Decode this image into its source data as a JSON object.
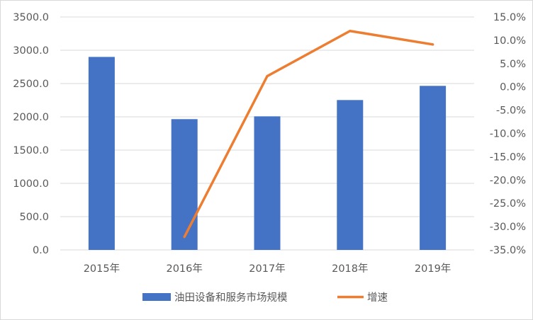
{
  "chart_data": {
    "type": "bar+line",
    "categories": [
      "2015年",
      "2016年",
      "2017年",
      "2018年",
      "2019年"
    ],
    "series": [
      {
        "name": "油田设备和服务市场规模",
        "type": "bar",
        "axis": "left",
        "color": "#4472C4",
        "values": [
          2900,
          1965,
          2007,
          2252,
          2465
        ]
      },
      {
        "name": "增速",
        "type": "line",
        "axis": "right",
        "color": "#ED7D31",
        "values": [
          null,
          -32.2,
          2.3,
          12.0,
          9.1
        ]
      }
    ],
    "y_left": {
      "range": [
        0,
        3500
      ],
      "ticks": [
        "0.0",
        "500.0",
        "1000.0",
        "1500.0",
        "2000.0",
        "2500.0",
        "3000.0",
        "3500.0"
      ]
    },
    "y_right": {
      "range": [
        -35,
        15
      ],
      "ticks": [
        "-35.0%",
        "-30.0%",
        "-25.0%",
        "-20.0%",
        "-15.0%",
        "-10.0%",
        "-5.0%",
        "0.0%",
        "5.0%",
        "10.0%",
        "15.0%"
      ]
    },
    "grid": true,
    "legend": "bottom"
  }
}
